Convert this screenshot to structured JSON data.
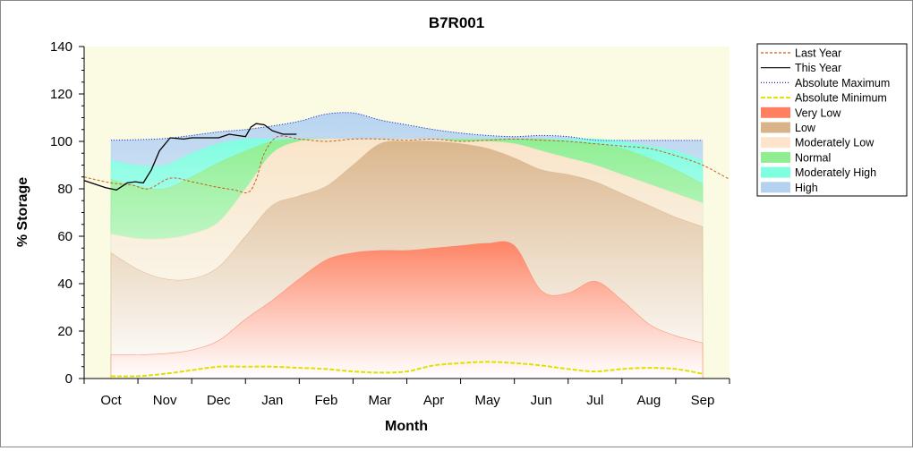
{
  "chart_data": {
    "type": "area",
    "title": "B7R001",
    "xlabel": "Month",
    "ylabel": "% Storage",
    "ylim": [
      0,
      140
    ],
    "yticks": [
      0,
      20,
      40,
      60,
      80,
      100,
      120,
      140
    ],
    "xlim": [
      0,
      12
    ],
    "x_tick_positions": [
      0.5,
      1.5,
      2.5,
      3.5,
      4.5,
      5.5,
      6.5,
      7.5,
      8.5,
      9.5,
      10.5,
      11.5
    ],
    "categories": [
      "Oct",
      "Nov",
      "Dec",
      "Jan",
      "Feb",
      "Mar",
      "Apr",
      "May",
      "Jun",
      "Jul",
      "Aug",
      "Sep"
    ],
    "grid": false,
    "legend_position": "right",
    "bands": [
      {
        "name": "Very Low",
        "color": "#ff7f60",
        "x": [
          0.5,
          1.0,
          1.5,
          2.0,
          2.5,
          3.0,
          3.5,
          4.0,
          4.5,
          5.0,
          5.5,
          6.0,
          6.5,
          7.0,
          7.5,
          8.0,
          8.5,
          9.0,
          9.5,
          10.0,
          10.5,
          11.0,
          11.5
        ],
        "y": [
          10,
          10,
          10.5,
          12,
          16,
          25,
          33,
          42,
          50,
          53,
          54,
          54,
          55,
          56,
          57,
          56,
          37,
          36,
          41,
          33,
          23,
          18,
          15
        ]
      },
      {
        "name": "Low",
        "color": "#d9b48a",
        "x": [
          0.5,
          1.0,
          1.5,
          2.0,
          2.5,
          3.0,
          3.5,
          4.0,
          4.5,
          5.0,
          5.5,
          6.0,
          6.5,
          7.0,
          7.5,
          8.0,
          8.5,
          9.0,
          9.5,
          10.0,
          10.5,
          11.0,
          11.5
        ],
        "y": [
          53,
          46,
          42,
          42,
          47,
          60,
          73,
          77,
          81,
          90,
          99,
          100,
          100,
          99,
          97,
          93,
          88,
          86,
          83,
          78,
          73,
          68,
          64
        ]
      },
      {
        "name": "Moderately Low",
        "color": "#ffe4cc",
        "x": [
          0.5,
          1.0,
          1.5,
          2.0,
          2.5,
          3.0,
          3.5,
          4.0,
          4.5,
          5.0,
          5.5,
          6.0,
          6.5,
          7.0,
          7.5,
          8.0,
          8.5,
          9.0,
          9.5,
          10.0,
          10.5,
          11.0,
          11.5
        ],
        "y": [
          61,
          59,
          59,
          61,
          66,
          80,
          95,
          100,
          101,
          101,
          101,
          101,
          101,
          100,
          100,
          99,
          96,
          93,
          90,
          86,
          82,
          78,
          74
        ]
      },
      {
        "name": "Normal",
        "color": "#90ee90",
        "x": [
          0.5,
          1.0,
          1.5,
          2.0,
          2.5,
          3.0,
          3.5,
          4.0,
          4.5,
          5.0,
          5.5,
          6.0,
          6.5,
          7.0,
          7.5,
          8.0,
          8.5,
          9.0,
          9.5,
          10.0,
          10.5,
          11.0,
          11.5
        ],
        "y": [
          84,
          81,
          80,
          85,
          91,
          96,
          100,
          101,
          101,
          101,
          101,
          101,
          101,
          101,
          101,
          101,
          101,
          100,
          99,
          97,
          93,
          88,
          82
        ]
      },
      {
        "name": "Moderately High",
        "color": "#7fffe0",
        "x": [
          0.5,
          1.0,
          1.5,
          2.0,
          2.5,
          3.0,
          3.5,
          4.0,
          4.5,
          5.0,
          5.5,
          6.0,
          6.5,
          7.0,
          7.5,
          8.0,
          8.5,
          9.0,
          9.5,
          10.0,
          10.5,
          11.0,
          11.5
        ],
        "y": [
          92,
          90,
          90,
          95,
          99,
          101,
          101,
          101,
          101,
          101,
          101,
          101,
          101,
          101,
          101,
          101,
          101,
          101,
          101,
          100,
          98,
          96,
          92
        ]
      },
      {
        "name": "High",
        "color": "#b4d2f0",
        "x": [
          0.5,
          1.0,
          1.5,
          2.0,
          2.5,
          3.0,
          3.5,
          4.0,
          4.5,
          5.0,
          5.5,
          6.0,
          6.5,
          7.0,
          7.5,
          8.0,
          8.5,
          9.0,
          9.5,
          10.0,
          10.5,
          11.0,
          11.5
        ],
        "y": [
          100.5,
          100.7,
          101.2,
          102.5,
          104,
          105,
          106.5,
          108.5,
          111.5,
          112,
          109,
          107,
          105,
          103.5,
          102.5,
          102,
          102.5,
          102,
          100.5,
          100.4,
          100.4,
          100.4,
          100.4
        ]
      }
    ],
    "series": [
      {
        "name": "Last Year",
        "color": "#c8601e",
        "dash": "3,2",
        "width": 1,
        "x": [
          0,
          0.5,
          0.9,
          1.2,
          1.6,
          2.0,
          2.4,
          2.8,
          3.05,
          3.2,
          3.35,
          3.6,
          4.0,
          4.5,
          5.0,
          5.5,
          6.0,
          6.5,
          7.0,
          7.5,
          8.0,
          8.5,
          9.0,
          9.5,
          10.0,
          10.5,
          11.0,
          11.5,
          12.0
        ],
        "y": [
          85,
          82.5,
          81.5,
          80,
          84.5,
          83,
          81,
          79.5,
          78.5,
          84,
          95,
          102,
          101,
          100,
          101,
          101,
          100.5,
          101,
          100,
          100.5,
          101,
          100.5,
          100,
          99,
          98,
          97,
          94,
          90,
          84
        ]
      },
      {
        "name": "This Year",
        "color": "#000000",
        "dash": "",
        "width": 1.3,
        "x": [
          0,
          0.2,
          0.4,
          0.6,
          0.8,
          0.95,
          1.1,
          1.25,
          1.4,
          1.6,
          1.85,
          2.0,
          2.2,
          2.5,
          2.7,
          2.85,
          3.0,
          3.1,
          3.2,
          3.35,
          3.5,
          3.7,
          3.95
        ],
        "y": [
          83.5,
          82,
          80.5,
          79.5,
          82.5,
          83,
          82.5,
          88,
          96,
          101.5,
          101,
          101.5,
          101.5,
          101.5,
          103,
          102.5,
          102,
          106,
          107.5,
          107,
          104.5,
          103,
          103
        ]
      },
      {
        "name": "Absolute Maximum",
        "color": "#2020c8",
        "dash": "1,2",
        "width": 1,
        "x": [
          0.5,
          1.0,
          1.5,
          2.0,
          2.5,
          3.0,
          3.5,
          4.0,
          4.5,
          5.0,
          5.5,
          6.0,
          6.5,
          7.0,
          7.5,
          8.0,
          8.5,
          9.0,
          9.5,
          10.0,
          10.5,
          11.0,
          11.5
        ],
        "y": [
          100.5,
          100.7,
          101.2,
          102.5,
          104,
          105,
          106.5,
          108.5,
          111.5,
          112,
          109,
          107,
          105,
          103.5,
          102.5,
          102,
          102.5,
          102,
          100.5,
          100.4,
          100.4,
          100.4,
          100.4
        ]
      },
      {
        "name": "Absolute Minimum",
        "color": "#e0e000",
        "dash": "5,2",
        "width": 2,
        "x": [
          0.5,
          1.0,
          1.5,
          2.0,
          2.5,
          3.0,
          3.5,
          4.0,
          4.5,
          5.0,
          5.5,
          6.0,
          6.5,
          7.0,
          7.5,
          8.0,
          8.5,
          9.0,
          9.5,
          10.0,
          10.5,
          11.0,
          11.5
        ],
        "y": [
          1,
          1,
          2,
          3.5,
          5,
          5,
          5,
          4.5,
          4,
          3,
          2.5,
          3,
          5.5,
          6.5,
          7,
          6.5,
          5.5,
          4,
          3,
          4,
          4.5,
          4,
          2
        ]
      }
    ],
    "legend": [
      {
        "label": "Last Year",
        "kind": "line",
        "color": "#c8601e",
        "dash": "3,2"
      },
      {
        "label": "This Year",
        "kind": "line",
        "color": "#000000",
        "dash": ""
      },
      {
        "label": "Absolute Maximum",
        "kind": "line",
        "color": "#2020c8",
        "dash": "1,2"
      },
      {
        "label": "Absolute Minimum",
        "kind": "line",
        "color": "#e0e000",
        "dash": "5,2"
      },
      {
        "label": "Very Low",
        "kind": "band",
        "color": "#ff7f60"
      },
      {
        "label": "Low",
        "kind": "band",
        "color": "#d9b48a"
      },
      {
        "label": "Moderately Low",
        "kind": "band",
        "color": "#ffe4cc"
      },
      {
        "label": "Normal",
        "kind": "band",
        "color": "#90ee90"
      },
      {
        "label": "Moderately High",
        "kind": "band",
        "color": "#7fffe0"
      },
      {
        "label": "High",
        "kind": "band",
        "color": "#b4d2f0"
      }
    ],
    "plot_background": "#fbfbe4"
  }
}
